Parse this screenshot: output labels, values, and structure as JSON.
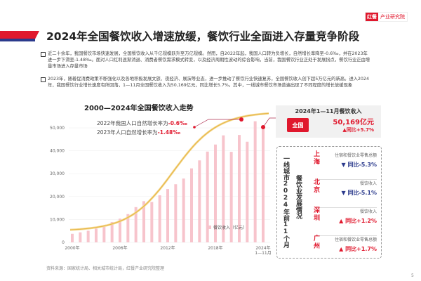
{
  "header": {
    "title": "2024年全国餐饮收入增速放缓，餐饮行业全面进入存量竞争阶段",
    "logo_mark": "红餐",
    "logo_text": "产业研究院"
  },
  "paragraphs": [
    "近二十余年，我国餐饮市场快速发展，全国餐饮收入从千亿规模跃升至万亿规模。然而，自2022年起，我国人口转为负增长，自然增长率降至-0.6‰，并在2023年进一步下滑至-1.48‰。面对人口红利逐渐消退、消费者餐饮需求模式转变，以及经济周期性波动的综合影响，当前，我国餐饮行业正处于发展拐点，餐饮行业正由增量市场进入存量市场",
    "2023年，随着促消费政策不断强化以及各地积极发展文旅、夜经济、展演等业态，进一步推动了餐饮行业快速复苏，全国餐饮收入创下超5万亿元的新高。进入2024年，我国餐饮行业增长速度有所回落，1—11月全国餐饮收入为50,169亿元，同比增长5.7%。其中，一线城市餐饮市场普遍出现了不同程度的增长放缓现象"
  ],
  "chart_data": {
    "type": "bar",
    "title": "2000—2024年全国餐饮收入走势",
    "categories": [
      "2000",
      "2001",
      "2002",
      "2003",
      "2004",
      "2005",
      "2006",
      "2007",
      "2008",
      "2009",
      "2010",
      "2011",
      "2012",
      "2013",
      "2014",
      "2015",
      "2016",
      "2017",
      "2018",
      "2019",
      "2020",
      "2021",
      "2022",
      "2023",
      "2024年1—11月"
    ],
    "series": [
      {
        "name": "餐饮收入（亿元）",
        "values": [
          3750,
          4370,
          5090,
          6030,
          7490,
          8890,
          10350,
          12350,
          15400,
          17990,
          17650,
          20540,
          23280,
          25390,
          27860,
          32310,
          35800,
          39640,
          42720,
          46720,
          39530,
          46900,
          43940,
          52890,
          50169
        ]
      }
    ],
    "x_tick_labels": [
      "2000年",
      "2006年",
      "2012年",
      "2018年",
      "2024年",
      "1—11月"
    ],
    "y_tick_labels": [
      "0",
      "10,000",
      "20,000",
      "30,000",
      "40,000",
      "50,000"
    ],
    "ylim": [
      0,
      55000
    ],
    "trend_line": "s-curve",
    "colors": {
      "bar": "#f7c4cc",
      "trend": "#e8b84a",
      "accent": "#e0182d"
    },
    "annotations": [
      {
        "text": "2022年我国人口自然增长率为",
        "value": "-0.6‰"
      },
      {
        "text": "2023年人口自然增长率为",
        "value": "-1.48‰"
      }
    ]
  },
  "summary": {
    "heading": "2024年1—11月餐饮收入",
    "badge": "全国",
    "value": "50,169亿元",
    "growth": "▲同比+5.7%"
  },
  "cities": {
    "heading1": "一线城市2024年前11个月",
    "heading2": "餐饮业发展情况",
    "items": [
      {
        "name": "上海",
        "label": "住宿和餐饮业零售总额",
        "change": "▼ 同比-5.3%",
        "dir": "down"
      },
      {
        "name": "北京",
        "label": "餐饮收入",
        "change": "▼ 同比-5.1%",
        "dir": "down"
      },
      {
        "name": "深圳",
        "label": "餐饮收入",
        "change": "▲ 同比+1.2%",
        "dir": "up"
      },
      {
        "name": "广州",
        "label": "住宿和餐饮业零售总额",
        "change": "▲ 同比+1.7%",
        "dir": "up"
      }
    ]
  },
  "footer": {
    "source": "资料来源：国家统计局、相关城市统计局，红餐产业研究院整理",
    "page": "5"
  }
}
